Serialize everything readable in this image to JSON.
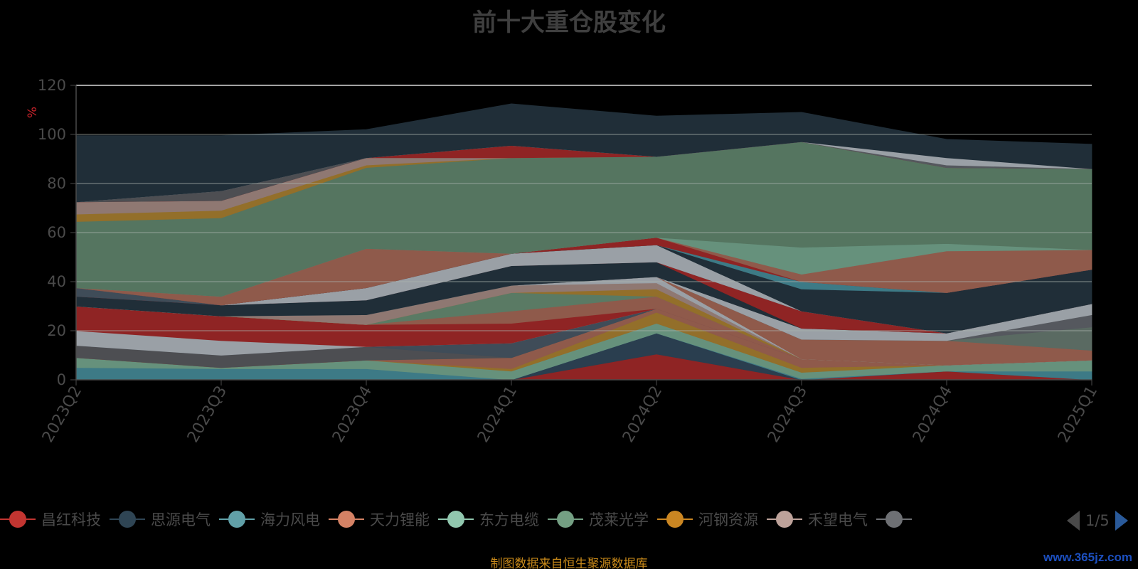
{
  "chart_data": {
    "type": "area",
    "stacked": true,
    "title": "前十大重仓股变化",
    "ylabel": "%",
    "xlabel": "",
    "ylim": [
      0,
      120
    ],
    "y_ticks": [
      0,
      20,
      40,
      60,
      80,
      100,
      120
    ],
    "categories": [
      "2023Q2",
      "2023Q3",
      "2023Q4",
      "2024Q1",
      "2024Q2",
      "2024Q3",
      "2024Q4",
      "2025Q1"
    ],
    "series": [
      {
        "color": "#8f2424",
        "values": [
          0,
          0,
          0,
          0,
          10.5,
          0,
          3.5,
          0
        ]
      },
      {
        "color": "#2a3e4f",
        "values": [
          0,
          0,
          0,
          0,
          8.5,
          0,
          0,
          0
        ]
      },
      {
        "color": "#3d7a86",
        "values": [
          5,
          4.5,
          4.5,
          0,
          0,
          0.5,
          0,
          3.5
        ]
      },
      {
        "color": "#66917c",
        "values": [
          4,
          0.5,
          3.5,
          3.5,
          4,
          2.5,
          2.5,
          4.5
        ]
      },
      {
        "color": "#936f2a",
        "values": [
          0,
          0,
          0,
          1,
          4.5,
          2,
          0,
          0
        ]
      },
      {
        "color": "#8f5a4b",
        "values": [
          0,
          0,
          0,
          4.5,
          1.5,
          3.5,
          0,
          0
        ]
      },
      {
        "color": "#4d4e52",
        "values": [
          5,
          5,
          5.5,
          0,
          0,
          0,
          0,
          0
        ]
      },
      {
        "color": "#3f4c58",
        "values": [
          0,
          0,
          0,
          6,
          0,
          0,
          0,
          0
        ]
      },
      {
        "color": "#9aa0a6",
        "values": [
          6,
          6,
          0,
          0,
          0,
          0,
          0,
          0
        ]
      },
      {
        "color": "#8f2424",
        "values": [
          10,
          10,
          9,
          8,
          0,
          0,
          0,
          0
        ]
      },
      {
        "color": "#8f5a4b",
        "values": [
          0,
          0,
          0,
          5,
          5,
          0,
          0,
          0
        ]
      },
      {
        "color": "#5a7a64",
        "values": [
          0,
          0,
          0,
          7.5,
          0,
          0,
          0,
          0
        ]
      },
      {
        "color": "#936f2a",
        "values": [
          0,
          0,
          0,
          0,
          3,
          0,
          0,
          0
        ]
      },
      {
        "color": "#8f7872",
        "values": [
          0,
          0,
          4,
          3,
          2.5,
          0,
          0,
          0
        ]
      },
      {
        "color": "#9aa0a6",
        "values": [
          0,
          0,
          0,
          0,
          2.5,
          0,
          0,
          0
        ]
      },
      {
        "color": "#8f5a4b",
        "values": [
          0,
          0,
          0,
          0,
          0,
          8,
          10,
          4
        ]
      },
      {
        "color": "#5a6a62",
        "values": [
          0,
          0,
          0,
          0,
          0,
          0,
          0,
          9.5
        ]
      },
      {
        "color": "#55585e",
        "values": [
          0,
          0,
          0,
          0,
          0,
          0,
          0,
          5
        ]
      },
      {
        "color": "#9aa0a6",
        "values": [
          0,
          0,
          0,
          0,
          0,
          4.5,
          3,
          4.5
        ]
      },
      {
        "color": "#202e38",
        "values": [
          4,
          4.5,
          6,
          8,
          6,
          0,
          0,
          0
        ]
      },
      {
        "color": "#8f2424",
        "values": [
          0,
          0,
          0,
          0,
          0,
          7,
          0,
          0
        ]
      },
      {
        "color": "#3f4c58",
        "values": [
          3.5,
          0,
          0,
          0,
          0,
          0,
          0,
          0
        ]
      },
      {
        "color": "#9aa0a6",
        "values": [
          0,
          0,
          5,
          5,
          7,
          0,
          0,
          0
        ]
      },
      {
        "color": "#202e38",
        "values": [
          0,
          0,
          0,
          0,
          0,
          9,
          16.5,
          14
        ]
      },
      {
        "color": "#3d7a86",
        "values": [
          0,
          0,
          0,
          0,
          0,
          3,
          0,
          0
        ]
      },
      {
        "color": "#8f2424",
        "values": [
          0,
          0,
          0,
          0,
          3,
          0,
          0,
          0
        ]
      },
      {
        "color": "#8f5a4b",
        "values": [
          0,
          3.5,
          16,
          0,
          0,
          3,
          17,
          8
        ]
      },
      {
        "color": "#66917c",
        "values": [
          0,
          0,
          0,
          0,
          0,
          11,
          3,
          0
        ]
      },
      {
        "color": "#557560",
        "values": [
          27,
          32,
          33,
          39,
          33,
          43,
          31,
          33
        ]
      },
      {
        "color": "#936f2a",
        "values": [
          3,
          3,
          1,
          0,
          0,
          0,
          0,
          0
        ]
      },
      {
        "color": "#8f7872",
        "values": [
          5,
          4,
          3,
          0,
          0,
          0,
          0,
          0
        ]
      },
      {
        "color": "#8f2424",
        "values": [
          0,
          0,
          0,
          5,
          0,
          0,
          0,
          0
        ]
      },
      {
        "color": "#4d4e52",
        "values": [
          0,
          4,
          0,
          0,
          0,
          0,
          0,
          0
        ]
      },
      {
        "color": "#55585e",
        "values": [
          0,
          0,
          0,
          0,
          0,
          0,
          1,
          0
        ]
      },
      {
        "color": "#9aa0a6",
        "values": [
          0,
          0,
          0,
          0,
          0,
          0,
          3,
          0
        ]
      },
      {
        "color": "#202e38",
        "values": [
          27,
          22.5,
          11.5,
          17,
          16.5,
          12,
          7.5,
          10
        ]
      }
    ],
    "legend_position": "bottom",
    "grid": true
  },
  "legend": {
    "items": [
      {
        "label": "昌红科技",
        "color": "#c23531"
      },
      {
        "label": "思源电气",
        "color": "#2f4554"
      },
      {
        "label": "海力风电",
        "color": "#61a0a8"
      },
      {
        "label": "天力锂能",
        "color": "#d48265"
      },
      {
        "label": "东方电缆",
        "color": "#91c7ae"
      },
      {
        "label": "茂莱光学",
        "color": "#749f83"
      },
      {
        "label": "河钢资源",
        "color": "#ca8622"
      },
      {
        "label": "禾望电气",
        "color": "#bda29a"
      },
      {
        "label": "",
        "color": "#6e7074"
      }
    ],
    "page_indicator": "1/5"
  },
  "footnote": "制图数据来自恒生聚源数据库",
  "watermark": "www.365jz.com"
}
